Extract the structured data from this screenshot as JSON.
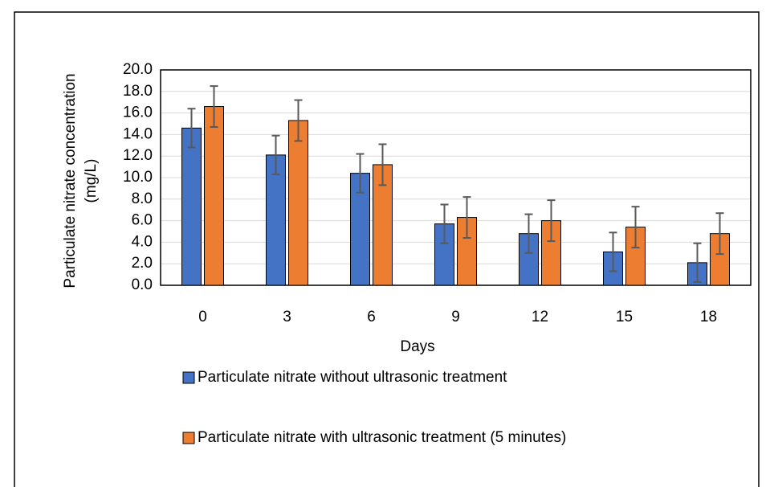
{
  "chart_data": {
    "type": "bar",
    "y_label": [
      "Particulate  nitrate concentration",
      "(mg/L)"
    ],
    "x_label": "Days",
    "categories": [
      "0",
      "3",
      "6",
      "9",
      "12",
      "15",
      "18"
    ],
    "series": [
      {
        "name": "Particulate  nitrate without ultrasonic treatment",
        "color": "#4472c4",
        "values": [
          14.6,
          12.1,
          10.4,
          5.7,
          4.8,
          3.1,
          2.1
        ],
        "errors": [
          1.8,
          1.8,
          1.8,
          1.8,
          1.8,
          1.8,
          1.8
        ]
      },
      {
        "name": "Particulate nitrate with ultrasonic treatment (5 minutes)",
        "color": "#ed7d31",
        "values": [
          16.6,
          15.3,
          11.2,
          6.3,
          6.0,
          5.4,
          4.8
        ],
        "errors": [
          1.9,
          1.9,
          1.9,
          1.9,
          1.9,
          1.9,
          1.9
        ]
      }
    ],
    "ylim": [
      0,
      20
    ],
    "yticks": [
      {
        "value": 0,
        "label": "0.0"
      },
      {
        "value": 2,
        "label": "2.0"
      },
      {
        "value": 4,
        "label": "4.0"
      },
      {
        "value": 6,
        "label": "6.0"
      },
      {
        "value": 8,
        "label": "8.0"
      },
      {
        "value": 10,
        "label": "10.0"
      },
      {
        "value": 12,
        "label": "12.0"
      },
      {
        "value": 14,
        "label": "14.0"
      },
      {
        "value": 16,
        "label": "16.0"
      },
      {
        "value": 18,
        "label": "18.0"
      },
      {
        "value": 20,
        "label": "20.0"
      }
    ],
    "grid": true
  }
}
